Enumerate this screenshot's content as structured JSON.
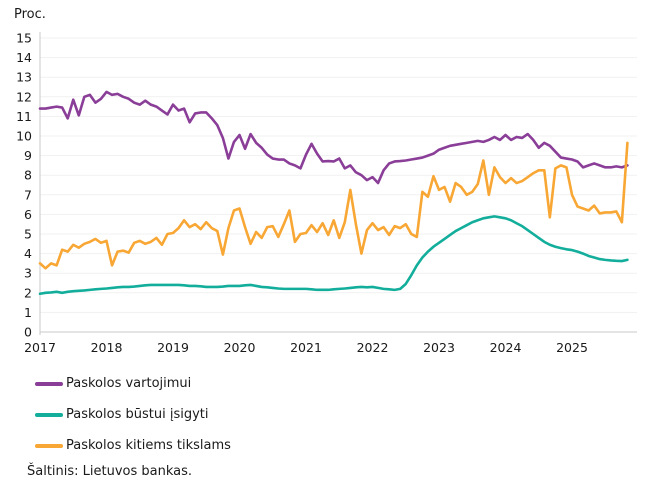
{
  "page": {
    "source": "Šaltinis: Lietuvos bankas."
  },
  "chart_data": {
    "type": "line",
    "title": "",
    "ylabel": "Proc.",
    "xlabel": "",
    "ylim": [
      0,
      15
    ],
    "y_tick_step": 1,
    "y_tick_labels": [
      "0",
      "1",
      "2",
      "3",
      "4",
      "5",
      "6",
      "7",
      "8",
      "9",
      "10",
      "11",
      "12",
      "13",
      "14",
      "15"
    ],
    "x_tick_labels": [
      "2017",
      "2018",
      "2019",
      "2020",
      "2021",
      "2022",
      "2023",
      "2024",
      "2025"
    ],
    "x_start": "2017-01",
    "x_freq": "monthly",
    "grid": "horizontal",
    "legend_position": "bottom-left",
    "series": [
      {
        "name": "Paskolos vartojimui",
        "color": "#8A3E98",
        "values": [
          11.4,
          11.4,
          11.45,
          11.5,
          11.45,
          10.9,
          11.85,
          11.05,
          12.0,
          12.1,
          11.7,
          11.9,
          12.25,
          12.1,
          12.15,
          12.0,
          11.9,
          11.7,
          11.6,
          11.8,
          11.6,
          11.5,
          11.3,
          11.1,
          11.6,
          11.3,
          11.4,
          10.7,
          11.15,
          11.2,
          11.2,
          10.9,
          10.55,
          9.9,
          8.85,
          9.7,
          10.05,
          9.35,
          10.1,
          9.65,
          9.4,
          9.05,
          8.85,
          8.8,
          8.8,
          8.6,
          8.5,
          8.35,
          9.05,
          9.6,
          9.1,
          8.7,
          8.72,
          8.7,
          8.85,
          8.35,
          8.5,
          8.15,
          8.0,
          7.75,
          7.9,
          7.6,
          8.25,
          8.6,
          8.7,
          8.72,
          8.75,
          8.8,
          8.85,
          8.9,
          9.0,
          9.1,
          9.3,
          9.4,
          9.5,
          9.55,
          9.6,
          9.65,
          9.7,
          9.75,
          9.7,
          9.8,
          9.95,
          9.8,
          10.05,
          9.8,
          9.95,
          9.9,
          10.1,
          9.8,
          9.4,
          9.65,
          9.5,
          9.2,
          8.9,
          8.85,
          8.8,
          8.7,
          8.4,
          8.5,
          8.6,
          8.5,
          8.4,
          8.4,
          8.45,
          8.4,
          8.5
        ]
      },
      {
        "name": "Paskolos būstui įsigyti",
        "color": "#12AE9B",
        "values": [
          1.95,
          2.0,
          2.02,
          2.05,
          2.0,
          2.05,
          2.08,
          2.1,
          2.12,
          2.15,
          2.18,
          2.2,
          2.22,
          2.25,
          2.28,
          2.3,
          2.3,
          2.32,
          2.35,
          2.38,
          2.4,
          2.4,
          2.4,
          2.4,
          2.4,
          2.4,
          2.38,
          2.35,
          2.35,
          2.33,
          2.3,
          2.3,
          2.3,
          2.32,
          2.35,
          2.35,
          2.35,
          2.38,
          2.4,
          2.35,
          2.3,
          2.28,
          2.25,
          2.22,
          2.2,
          2.2,
          2.2,
          2.2,
          2.2,
          2.18,
          2.15,
          2.15,
          2.15,
          2.18,
          2.2,
          2.22,
          2.25,
          2.28,
          2.3,
          2.28,
          2.3,
          2.25,
          2.2,
          2.18,
          2.15,
          2.2,
          2.45,
          2.9,
          3.4,
          3.8,
          4.1,
          4.35,
          4.55,
          4.75,
          4.95,
          5.15,
          5.3,
          5.45,
          5.6,
          5.7,
          5.8,
          5.85,
          5.9,
          5.85,
          5.8,
          5.7,
          5.55,
          5.4,
          5.2,
          5.0,
          4.8,
          4.6,
          4.45,
          4.35,
          4.28,
          4.22,
          4.18,
          4.1,
          4.0,
          3.88,
          3.8,
          3.72,
          3.68,
          3.65,
          3.63,
          3.62,
          3.68
        ]
      },
      {
        "name": "Paskolos kitiems tikslams",
        "color": "#F8A735",
        "values": [
          3.5,
          3.25,
          3.5,
          3.4,
          4.2,
          4.1,
          4.45,
          4.3,
          4.5,
          4.6,
          4.75,
          4.55,
          4.65,
          3.4,
          4.1,
          4.15,
          4.05,
          4.55,
          4.65,
          4.5,
          4.6,
          4.8,
          4.45,
          5.0,
          5.05,
          5.3,
          5.7,
          5.35,
          5.5,
          5.25,
          5.6,
          5.3,
          5.15,
          3.95,
          5.3,
          6.2,
          6.3,
          5.35,
          4.5,
          5.1,
          4.8,
          5.35,
          5.4,
          4.85,
          5.5,
          6.2,
          4.6,
          5.0,
          5.05,
          5.45,
          5.1,
          5.55,
          4.95,
          5.7,
          4.8,
          5.6,
          7.25,
          5.5,
          4.0,
          5.2,
          5.55,
          5.2,
          5.35,
          4.95,
          5.4,
          5.3,
          5.5,
          5.0,
          4.85,
          7.15,
          6.9,
          7.95,
          7.25,
          7.4,
          6.65,
          7.6,
          7.4,
          7.0,
          7.15,
          7.55,
          8.75,
          7.0,
          8.4,
          7.9,
          7.6,
          7.85,
          7.6,
          7.7,
          7.9,
          8.1,
          8.25,
          8.25,
          5.85,
          8.35,
          8.5,
          8.4,
          7.0,
          6.4,
          6.3,
          6.2,
          6.45,
          6.05,
          6.1,
          6.1,
          6.15,
          5.6,
          9.65
        ]
      }
    ]
  }
}
